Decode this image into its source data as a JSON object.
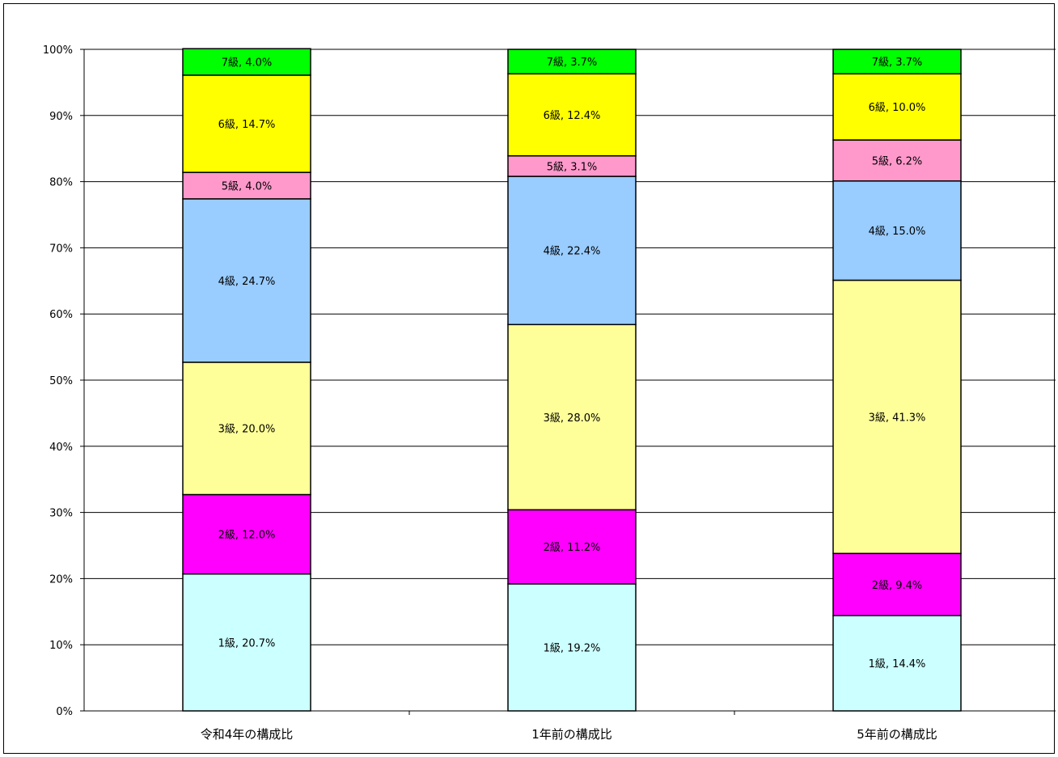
{
  "chart_data": {
    "type": "bar",
    "stacked": true,
    "percent_stacked": true,
    "categories": [
      "令和4年の構成比",
      "1年前の構成比",
      "5年前の構成比"
    ],
    "series": [
      {
        "name": "1級",
        "color": "#ccffff",
        "values": [
          20.7,
          19.2,
          14.4
        ],
        "labels": [
          "1級, 20.7%",
          "1級, 19.2%",
          "1級, 14.4%"
        ]
      },
      {
        "name": "2級",
        "color": "#ff00ff",
        "values": [
          12.0,
          11.2,
          9.4
        ],
        "labels": [
          "2級, 12.0%",
          "2級, 11.2%",
          "2級, 9.4%"
        ]
      },
      {
        "name": "3級",
        "color": "#ffff99",
        "values": [
          20.0,
          28.0,
          41.3
        ],
        "labels": [
          "3級, 20.0%",
          "3級, 28.0%",
          "3級, 41.3%"
        ]
      },
      {
        "name": "4級",
        "color": "#99ccff",
        "values": [
          24.7,
          22.4,
          15.0
        ],
        "labels": [
          "4級, 24.7%",
          "4級, 22.4%",
          "4級, 15.0%"
        ]
      },
      {
        "name": "5級",
        "color": "#ff99cc",
        "values": [
          4.0,
          3.1,
          6.2
        ],
        "labels": [
          "5級, 4.0%",
          "5級, 3.1%",
          "5級, 6.2%"
        ]
      },
      {
        "name": "6級",
        "color": "#ffff00",
        "values": [
          14.7,
          12.4,
          10.0
        ],
        "labels": [
          "6級, 14.7%",
          "6級, 12.4%",
          "6級, 10.0%"
        ]
      },
      {
        "name": "7級",
        "color": "#00ff00",
        "values": [
          4.0,
          3.7,
          3.7
        ],
        "labels": [
          "7級, 4.0%",
          "7級, 3.7%",
          "7級, 3.7%"
        ]
      }
    ],
    "yaxis": {
      "ylim": [
        0,
        100
      ],
      "ticks": [
        "0%",
        "10%",
        "20%",
        "30%",
        "40%",
        "50%",
        "60%",
        "70%",
        "80%",
        "90%",
        "100%"
      ]
    },
    "grid": true,
    "legend": "none"
  }
}
